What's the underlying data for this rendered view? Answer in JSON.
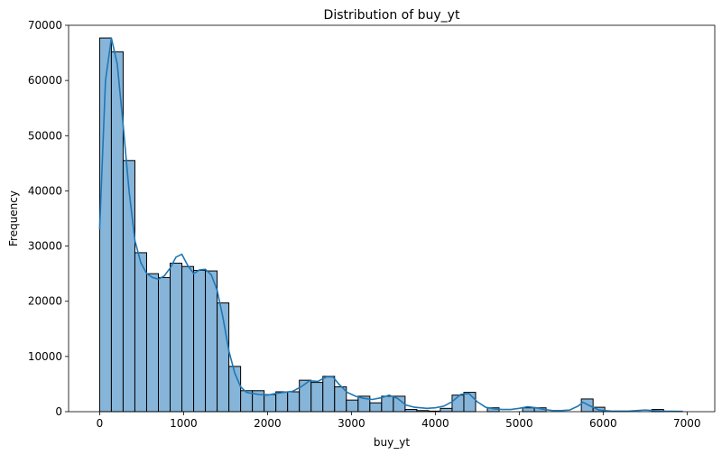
{
  "chart_data": {
    "type": "bar",
    "title": "Distribution of buy_yt",
    "xlabel": "buy_yt",
    "ylabel": "Frequency",
    "xlim": [
      -370,
      7330
    ],
    "ylim": [
      0,
      70000
    ],
    "xticks": [
      0,
      1000,
      2000,
      3000,
      4000,
      5000,
      6000,
      7000
    ],
    "yticks": [
      0,
      10000,
      20000,
      30000,
      40000,
      50000,
      60000,
      70000
    ],
    "bin_width": 140,
    "bin_start": 0,
    "values": [
      67700,
      65200,
      45500,
      28800,
      25000,
      24300,
      26900,
      26300,
      25600,
      25500,
      19700,
      8200,
      3800,
      3800,
      3100,
      3600,
      3600,
      5700,
      5300,
      6400,
      4500,
      2100,
      2800,
      1600,
      2800,
      2800,
      400,
      200,
      100,
      600,
      3000,
      3500,
      0,
      700,
      0,
      0,
      700,
      700,
      0,
      0,
      0,
      2300,
      800,
      0,
      0,
      0,
      0,
      400
    ],
    "kde": {
      "x": [
        0,
        70,
        140,
        210,
        280,
        350,
        420,
        490,
        560,
        630,
        700,
        770,
        840,
        910,
        980,
        1050,
        1120,
        1190,
        1260,
        1330,
        1400,
        1470,
        1540,
        1610,
        1680,
        1750,
        1820,
        1900,
        2000,
        2100,
        2200,
        2300,
        2400,
        2500,
        2600,
        2700,
        2780,
        2850,
        2950,
        3050,
        3150,
        3250,
        3350,
        3450,
        3550,
        3650,
        3750,
        3900,
        4000,
        4100,
        4200,
        4300,
        4400,
        4500,
        4600,
        4700,
        4800,
        4900,
        5000,
        5100,
        5200,
        5300,
        5400,
        5500,
        5600,
        5700,
        5760,
        5850,
        5950,
        6100,
        6300,
        6500,
        6700,
        6950
      ],
      "y": [
        33000,
        60000,
        67700,
        63000,
        52000,
        40000,
        31000,
        27000,
        25000,
        24300,
        24000,
        24600,
        26000,
        28000,
        28500,
        26500,
        25000,
        25700,
        25800,
        24800,
        22000,
        17000,
        11000,
        7000,
        4500,
        3500,
        3300,
        3100,
        3000,
        3300,
        3500,
        3700,
        4500,
        5600,
        5500,
        6300,
        6300,
        5000,
        3500,
        2800,
        2400,
        2200,
        2500,
        3000,
        2400,
        1200,
        800,
        600,
        700,
        1000,
        1800,
        3100,
        3300,
        1800,
        800,
        500,
        400,
        400,
        600,
        900,
        700,
        400,
        200,
        200,
        300,
        1000,
        1700,
        1000,
        300,
        100,
        100,
        300,
        100,
        50
      ]
    },
    "colors": {
      "bar_fill": "#86b5d9",
      "bar_edge": "#000000",
      "kde_line": "#1f77b4"
    }
  }
}
